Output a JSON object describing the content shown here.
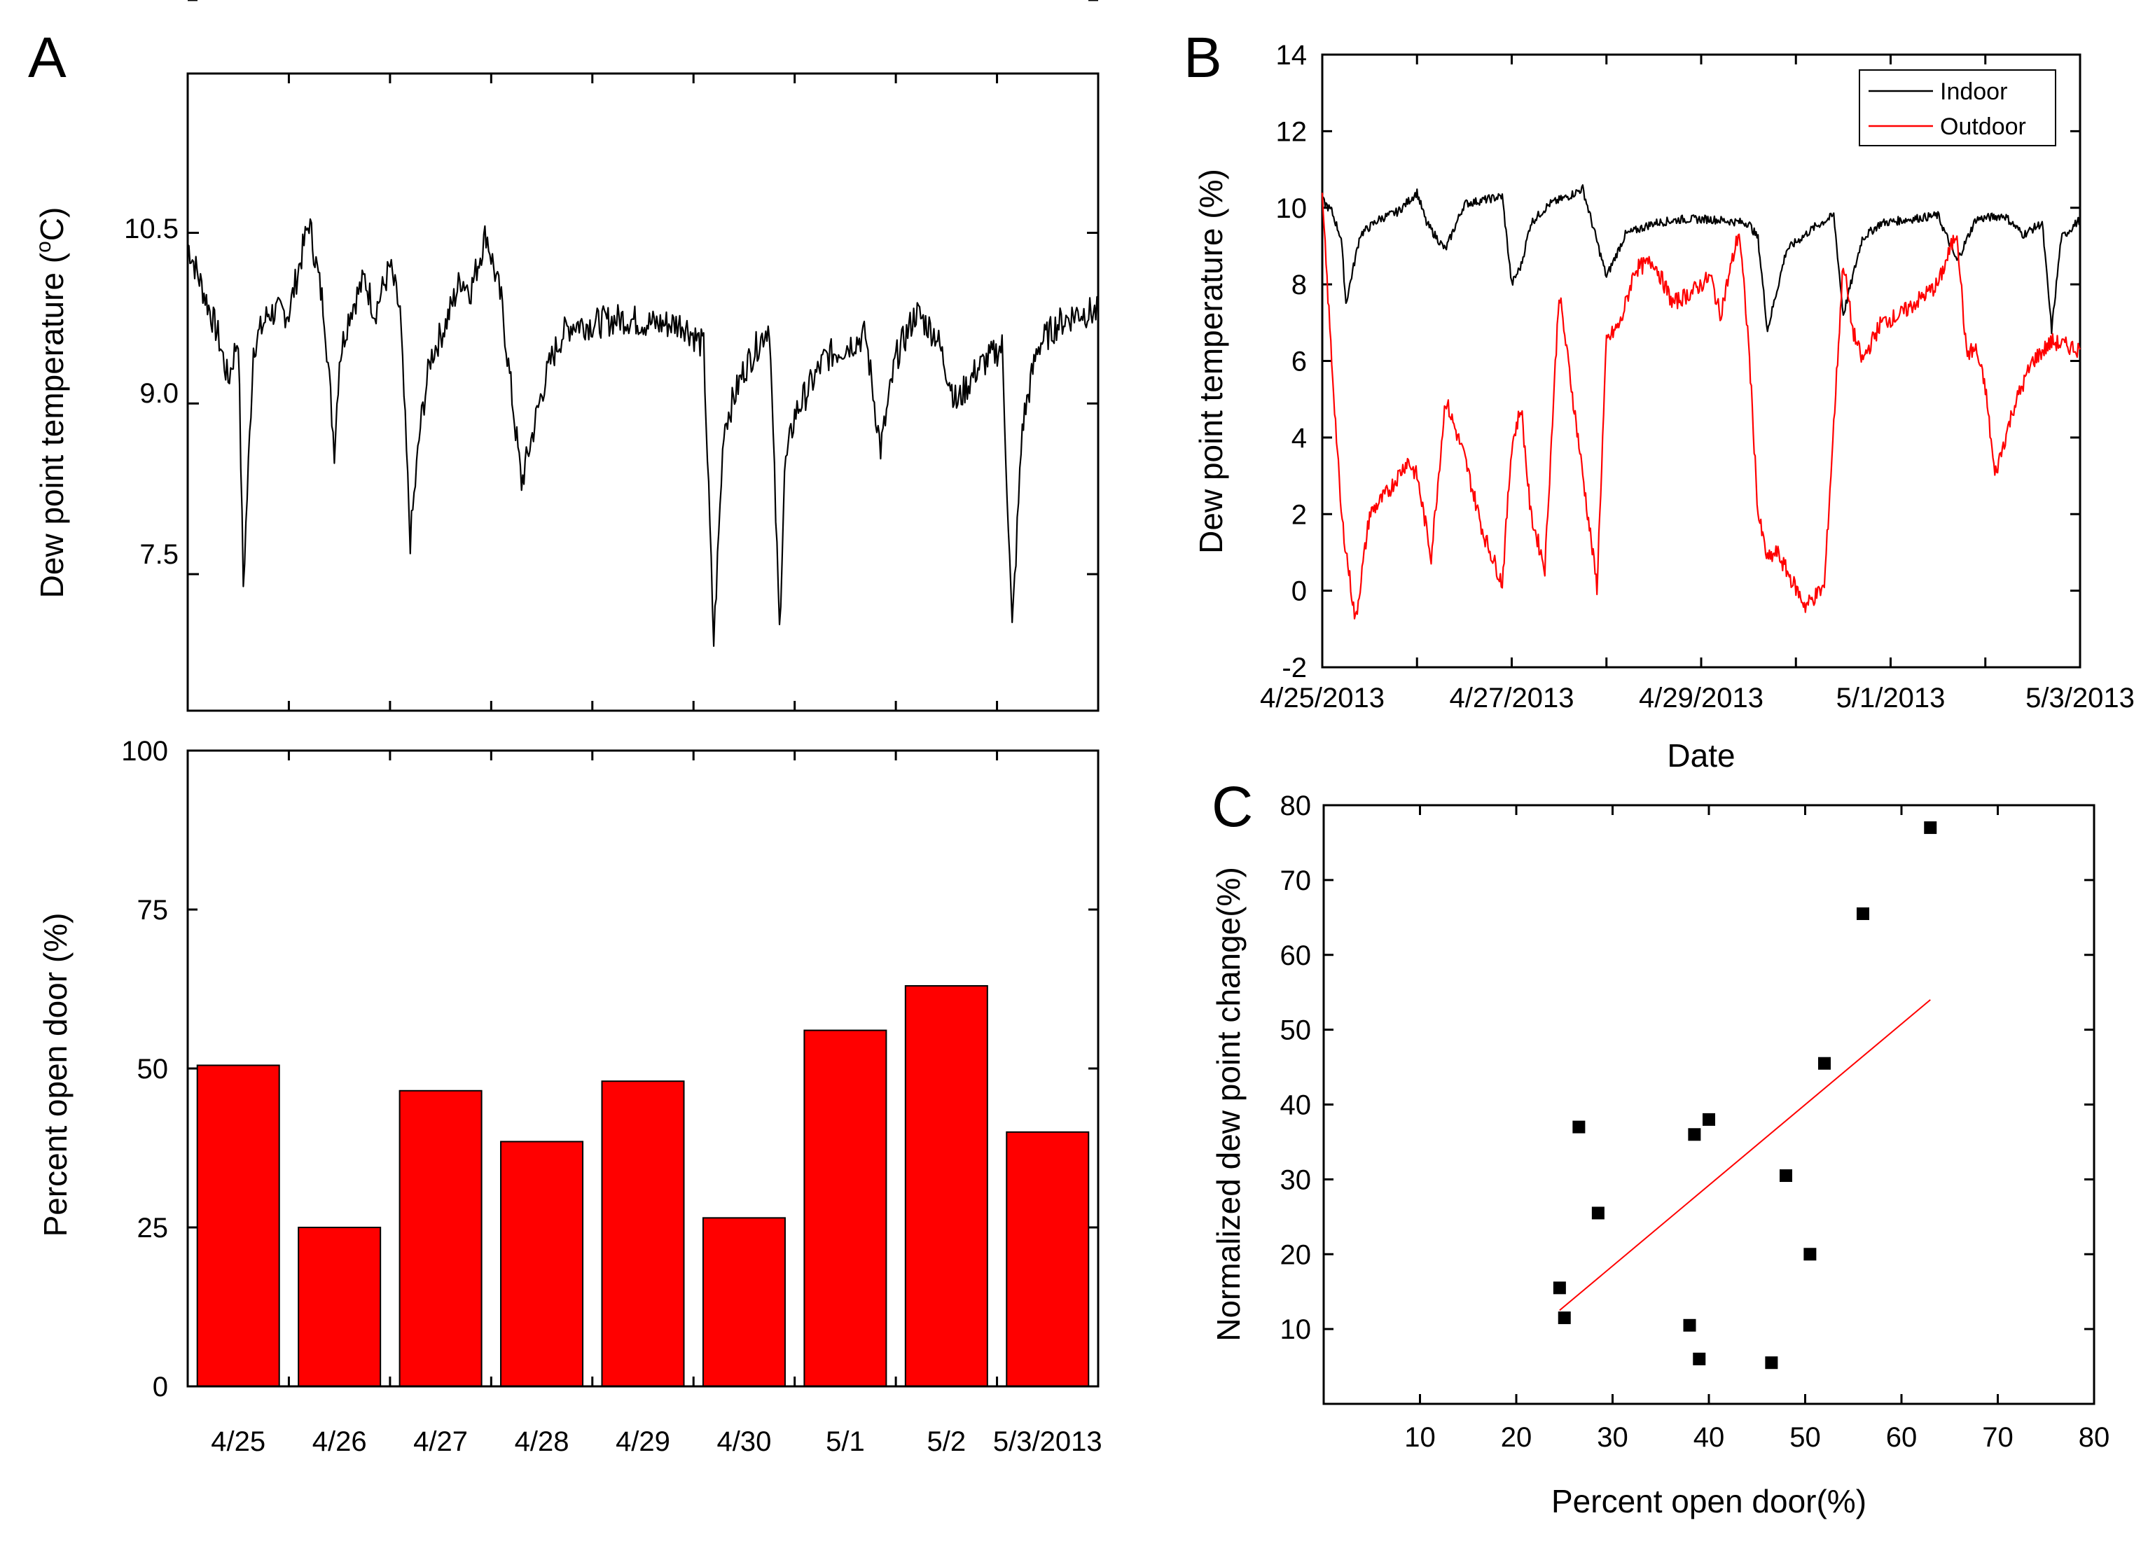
{
  "panels": {
    "A": {
      "letter": "A",
      "top": {
        "ylabel_main": "Dew point temperature (",
        "ylabel_sup": "o",
        "ylabel_end": "C)",
        "yticks": [
          "7.5",
          "9.0",
          "10.5"
        ]
      },
      "bottom": {
        "ylabel": "Percent open door (%)",
        "yticks": [
          "0",
          "25",
          "50",
          "75",
          "100"
        ]
      }
    },
    "B": {
      "letter": "B",
      "ylabel": "Dew point temperature (%)",
      "xlabel": "Date",
      "yticks": [
        "-2",
        "0",
        "2",
        "4",
        "6",
        "8",
        "10",
        "12",
        "14"
      ],
      "xticks": [
        "4/25/2013",
        "4/27/2013",
        "4/29/2013",
        "5/1/2013",
        "5/3/2013"
      ],
      "legend": {
        "indoor": "Indoor",
        "outdoor": "Outdoor"
      }
    },
    "C": {
      "letter": "C",
      "ylabel": "Normalized dew point change(%)",
      "xlabel": "Percent open door(%)",
      "yticks": [
        "10",
        "20",
        "30",
        "40",
        "50",
        "60",
        "70",
        "80"
      ],
      "xticks": [
        "10",
        "20",
        "30",
        "40",
        "50",
        "60",
        "70",
        "80"
      ]
    }
  },
  "chart_data": [
    {
      "panel": "A-top",
      "type": "line",
      "ylabel": "Dew point temperature (oC)",
      "ylim": [
        6.3,
        11.9
      ],
      "xlim": [
        0,
        9
      ],
      "color": "#000000",
      "x": [
        0,
        0.15,
        0.3,
        0.4,
        0.5,
        0.55,
        0.65,
        0.8,
        1.0,
        1.1,
        1.2,
        1.35,
        1.45,
        1.5,
        1.6,
        1.75,
        1.85,
        2.0,
        2.1,
        2.2,
        2.3,
        2.4,
        2.55,
        2.7,
        2.8,
        2.95,
        3.1,
        3.3,
        3.5,
        3.6,
        3.7,
        3.8,
        4.0,
        4.3,
        4.6,
        4.9,
        5.1,
        5.15,
        5.2,
        5.3,
        5.5,
        5.75,
        5.85,
        5.9,
        6.0,
        6.3,
        6.7,
        6.85,
        7.0,
        7.2,
        7.4,
        7.6,
        7.8,
        8.05,
        8.15,
        8.25,
        8.4,
        8.6,
        8.8,
        9.0
      ],
      "y": [
        10.4,
        10.0,
        9.6,
        9.2,
        9.6,
        7.4,
        9.5,
        9.8,
        9.8,
        10.2,
        10.6,
        9.8,
        8.6,
        9.4,
        9.8,
        10.1,
        9.8,
        10.2,
        9.8,
        7.8,
        8.8,
        9.4,
        9.7,
        10.1,
        10.0,
        10.5,
        9.9,
        8.3,
        9.1,
        9.4,
        9.6,
        9.7,
        9.7,
        9.75,
        9.7,
        9.7,
        9.5,
        8.2,
        6.9,
        8.8,
        9.3,
        9.7,
        7.0,
        8.4,
        8.9,
        9.4,
        9.6,
        8.6,
        9.4,
        9.8,
        9.6,
        9.0,
        9.3,
        9.5,
        7.0,
        8.8,
        9.5,
        9.7,
        9.8,
        9.8
      ]
    },
    {
      "panel": "A-bottom",
      "type": "bar",
      "ylabel": "Percent open door (%)",
      "ylim": [
        0,
        100
      ],
      "color": "#ff0000",
      "categories": [
        "4/25",
        "4/26",
        "4/27",
        "4/28",
        "4/29",
        "4/30",
        "5/1",
        "5/2",
        "5/3/2013"
      ],
      "values": [
        50.5,
        25,
        46.5,
        38.5,
        48,
        26.5,
        56,
        63,
        40
      ]
    },
    {
      "panel": "B",
      "type": "line",
      "ylabel": "Dew point temperature (%)",
      "xlabel": "Date",
      "ylim": [
        -2,
        14
      ],
      "x_dates": [
        "4/25/2013",
        "4/26/2013",
        "4/27/2013",
        "4/28/2013",
        "4/29/2013",
        "4/30/2013",
        "5/1/2013",
        "5/2/2013",
        "5/3/2013"
      ],
      "legend_position": "top-right",
      "series": [
        {
          "name": "Indoor",
          "color": "#000000",
          "x": [
            0,
            0.1,
            0.2,
            0.25,
            0.4,
            0.6,
            0.8,
            1.0,
            1.1,
            1.3,
            1.5,
            1.7,
            1.9,
            2.0,
            2.1,
            2.2,
            2.4,
            2.6,
            2.75,
            3.0,
            3.2,
            3.5,
            3.8,
            4.1,
            4.5,
            4.6,
            4.7,
            4.9,
            5.2,
            5.4,
            5.5,
            5.6,
            5.7,
            5.9,
            6.2,
            6.5,
            6.7,
            6.9,
            7.2,
            7.4,
            7.6,
            7.7,
            7.8,
            8.0
          ],
          "y": [
            10.2,
            9.9,
            9.2,
            7.5,
            9.3,
            9.7,
            9.9,
            10.4,
            9.6,
            8.9,
            10.1,
            10.2,
            10.3,
            8.0,
            8.5,
            9.6,
            10.1,
            10.3,
            10.5,
            8.2,
            9.3,
            9.6,
            9.7,
            9.7,
            9.6,
            9.2,
            6.8,
            8.9,
            9.5,
            9.8,
            7.2,
            8.2,
            9.2,
            9.6,
            9.7,
            9.8,
            8.6,
            9.7,
            9.8,
            9.3,
            9.6,
            6.8,
            9.2,
            9.7
          ]
        },
        {
          "name": "Outdoor",
          "color": "#ff0000",
          "x": [
            0,
            0.1,
            0.2,
            0.35,
            0.5,
            0.7,
            0.9,
            1.0,
            1.15,
            1.3,
            1.5,
            1.7,
            1.9,
            2.0,
            2.1,
            2.2,
            2.35,
            2.5,
            2.7,
            2.9,
            3.0,
            3.15,
            3.3,
            3.5,
            3.7,
            3.9,
            4.1,
            4.2,
            4.4,
            4.5,
            4.6,
            4.7,
            4.8,
            5.1,
            5.3,
            5.5,
            5.6,
            5.7,
            5.9,
            6.1,
            6.3,
            6.5,
            6.7,
            6.8,
            6.9,
            7.0,
            7.1,
            7.3,
            7.5,
            7.7,
            8.0
          ],
          "y": [
            10.2,
            6.0,
            2.0,
            -0.8,
            2.0,
            2.6,
            3.4,
            3.0,
            0.9,
            5.0,
            3.5,
            1.5,
            0.2,
            3.8,
            4.8,
            2.0,
            0.6,
            7.8,
            4.0,
            0.1,
            6.5,
            7.0,
            8.4,
            8.6,
            7.5,
            7.8,
            8.2,
            7.2,
            9.4,
            6.5,
            2.0,
            0.8,
            1.0,
            -0.4,
            0.1,
            8.6,
            6.8,
            6.0,
            7.0,
            7.2,
            7.6,
            8.0,
            9.4,
            6.2,
            6.3,
            5.3,
            3.0,
            4.8,
            6.0,
            6.5,
            6.3
          ]
        }
      ]
    },
    {
      "panel": "C",
      "type": "scatter",
      "xlabel": "Percent open door(%)",
      "ylabel": "Normalized dew point change(%)",
      "xlim": [
        0,
        80
      ],
      "ylim": [
        0,
        80
      ],
      "points": [
        [
          63,
          77
        ],
        [
          56,
          65.5
        ],
        [
          52,
          45.5
        ],
        [
          40,
          38
        ],
        [
          38.5,
          36
        ],
        [
          26.5,
          37
        ],
        [
          48,
          30.5
        ],
        [
          28.5,
          25.5
        ],
        [
          50.5,
          20
        ],
        [
          24.5,
          15.5
        ],
        [
          25,
          11.5
        ],
        [
          38,
          10.5
        ],
        [
          39,
          6
        ],
        [
          46.5,
          5.5
        ]
      ],
      "marker_color": "#000000",
      "fit_line": {
        "x": [
          24.5,
          63
        ],
        "y": [
          12.5,
          54
        ],
        "color": "#ff0000"
      }
    }
  ]
}
